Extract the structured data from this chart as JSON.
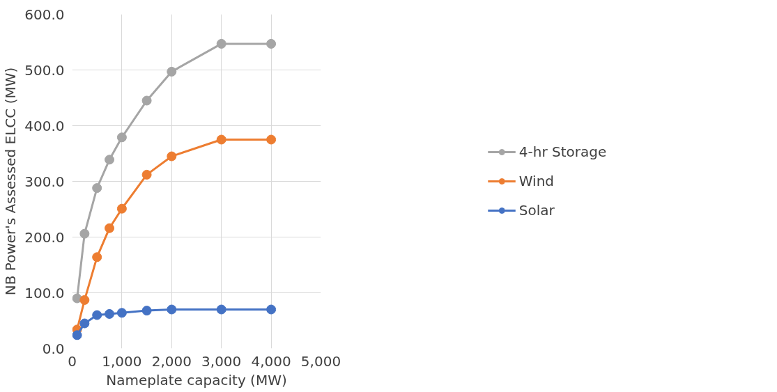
{
  "chart_data": {
    "type": "line",
    "xlabel": "Nameplate capacity (MW)",
    "ylabel": "NB Power's Assessed ELCC (MW)",
    "x": [
      100,
      250,
      500,
      750,
      1000,
      1500,
      2000,
      3000,
      4000
    ],
    "series": [
      {
        "name": "4-hr Storage",
        "color": "#a5a5a5",
        "values": [
          90,
          206,
          288,
          339,
          379,
          445,
          497,
          547,
          547
        ]
      },
      {
        "name": "Wind",
        "color": "#ed7d31",
        "values": [
          34,
          87,
          164,
          216,
          251,
          312,
          345,
          375,
          375
        ]
      },
      {
        "name": "Solar",
        "color": "#4472c4",
        "values": [
          24,
          45,
          60,
          62,
          64,
          68,
          70,
          70,
          70
        ]
      }
    ],
    "xlim": [
      0,
      5000
    ],
    "xticks": [
      0,
      {
        "value": 1000,
        "label": "1,000"
      },
      {
        "value": 2000,
        "label": "2,000"
      },
      {
        "value": 3000,
        "label": "3,000"
      },
      {
        "value": 4000,
        "label": "4,000"
      },
      {
        "value": 5000,
        "label": "5,000"
      }
    ],
    "ylim": [
      0,
      600
    ],
    "yticks": [
      {
        "value": 0,
        "label": "0.0"
      },
      {
        "value": 100,
        "label": "100.0"
      },
      {
        "value": 200,
        "label": "200.0"
      },
      {
        "value": 300,
        "label": "300.0"
      },
      {
        "value": 400,
        "label": "400.0"
      },
      {
        "value": 500,
        "label": "500.0"
      },
      {
        "value": 600,
        "label": "600.0"
      }
    ],
    "grid": true,
    "legend": "right",
    "marker": "circle",
    "line_style": "solid"
  }
}
